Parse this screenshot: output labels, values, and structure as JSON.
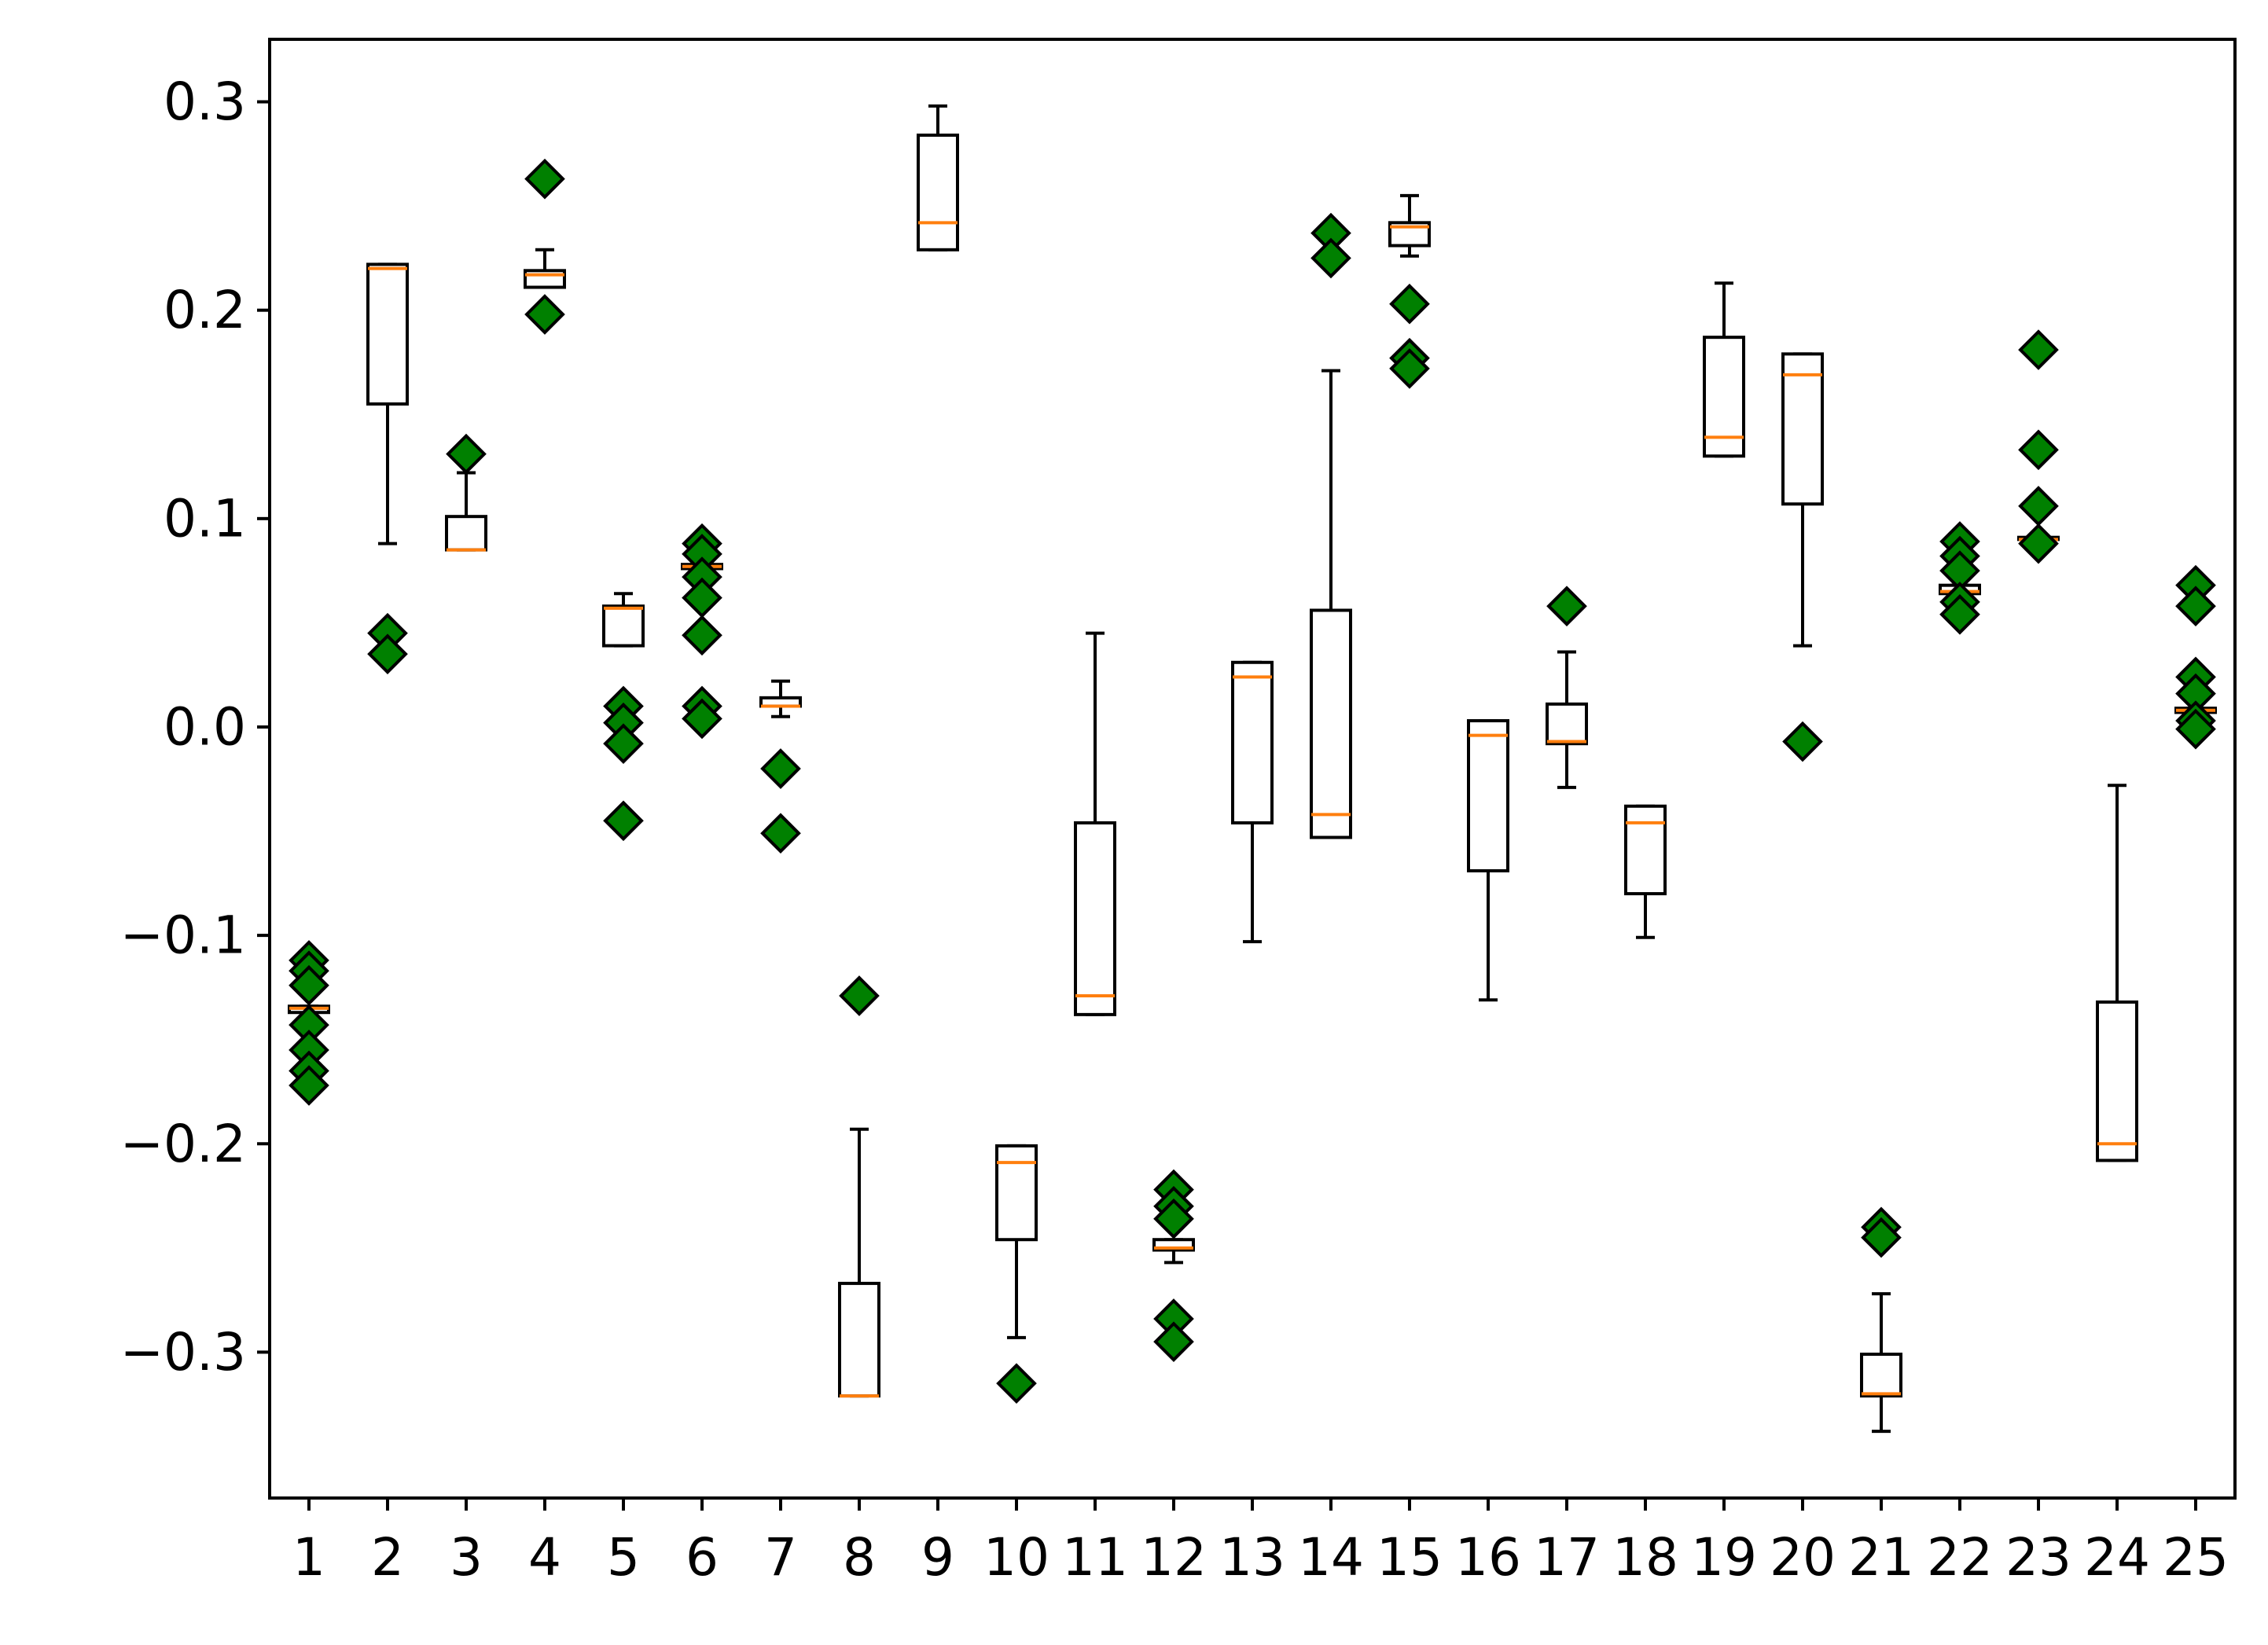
{
  "chart_data": {
    "type": "box",
    "title": "",
    "xlabel": "",
    "ylabel": "",
    "categories": [
      "1",
      "2",
      "3",
      "4",
      "5",
      "6",
      "7",
      "8",
      "9",
      "10",
      "11",
      "12",
      "13",
      "14",
      "15",
      "16",
      "17",
      "18",
      "19",
      "20",
      "21",
      "22",
      "23",
      "24",
      "25"
    ],
    "ylim": [
      -0.37,
      0.33
    ],
    "yticks": [
      -0.3,
      -0.2,
      -0.1,
      0.0,
      0.1,
      0.2,
      0.3
    ],
    "ytick_labels": [
      "−0.3",
      "−0.2",
      "−0.1",
      "0.0",
      "0.1",
      "0.2",
      "0.3"
    ],
    "grid": false,
    "colors": {
      "box": "#000000",
      "median": "#ff7f0e",
      "flier": "#008000",
      "flier_edge": "#000000"
    },
    "boxes": [
      {
        "q1": -0.137,
        "median": -0.135,
        "q3": -0.134,
        "whislo": -0.137,
        "whishi": -0.134,
        "fliers": [
          -0.112,
          -0.117,
          -0.124,
          -0.143,
          -0.155,
          -0.165,
          -0.172
        ]
      },
      {
        "q1": 0.155,
        "median": 0.22,
        "q3": 0.222,
        "whislo": 0.088,
        "whishi": 0.222,
        "fliers": [
          0.045,
          0.035
        ]
      },
      {
        "q1": 0.085,
        "median": 0.085,
        "q3": 0.101,
        "whislo": 0.085,
        "whishi": 0.122,
        "fliers": [
          0.131
        ]
      },
      {
        "q1": 0.211,
        "median": 0.217,
        "q3": 0.219,
        "whislo": 0.211,
        "whishi": 0.229,
        "fliers": [
          0.263,
          0.198
        ]
      },
      {
        "q1": 0.039,
        "median": 0.057,
        "q3": 0.058,
        "whislo": 0.039,
        "whishi": 0.064,
        "fliers": [
          0.01,
          0.002,
          -0.008,
          -0.045
        ]
      },
      {
        "q1": 0.076,
        "median": 0.077,
        "q3": 0.078,
        "whislo": 0.076,
        "whishi": 0.078,
        "fliers": [
          0.088,
          0.083,
          0.072,
          0.062,
          0.044,
          0.01,
          0.004
        ]
      },
      {
        "q1": 0.01,
        "median": 0.01,
        "q3": 0.014,
        "whislo": 0.005,
        "whishi": 0.022,
        "fliers": [
          -0.02,
          -0.051
        ]
      },
      {
        "q1": -0.321,
        "median": -0.321,
        "q3": -0.267,
        "whislo": -0.321,
        "whishi": -0.193,
        "fliers": [
          -0.129
        ]
      },
      {
        "q1": 0.229,
        "median": 0.242,
        "q3": 0.284,
        "whislo": 0.229,
        "whishi": 0.298,
        "fliers": []
      },
      {
        "q1": -0.246,
        "median": -0.209,
        "q3": -0.201,
        "whislo": -0.293,
        "whishi": -0.201,
        "fliers": [
          -0.315
        ]
      },
      {
        "q1": -0.138,
        "median": -0.129,
        "q3": -0.046,
        "whislo": -0.138,
        "whishi": 0.045,
        "fliers": []
      },
      {
        "q1": -0.251,
        "median": -0.25,
        "q3": -0.246,
        "whislo": -0.257,
        "whishi": -0.246,
        "fliers": [
          -0.222,
          -0.23,
          -0.236,
          -0.284,
          -0.295
        ]
      },
      {
        "q1": -0.046,
        "median": 0.024,
        "q3": 0.031,
        "whislo": -0.103,
        "whishi": 0.031,
        "fliers": []
      },
      {
        "q1": -0.053,
        "median": -0.042,
        "q3": 0.056,
        "whislo": -0.053,
        "whishi": 0.171,
        "fliers": [
          0.237,
          0.225
        ]
      },
      {
        "q1": 0.231,
        "median": 0.24,
        "q3": 0.242,
        "whislo": 0.226,
        "whishi": 0.255,
        "fliers": [
          0.203,
          0.177,
          0.172
        ]
      },
      {
        "q1": -0.069,
        "median": -0.004,
        "q3": 0.003,
        "whislo": -0.131,
        "whishi": 0.003,
        "fliers": []
      },
      {
        "q1": -0.008,
        "median": -0.007,
        "q3": 0.011,
        "whislo": -0.029,
        "whishi": 0.036,
        "fliers": [
          0.058
        ]
      },
      {
        "q1": -0.08,
        "median": -0.046,
        "q3": -0.038,
        "whislo": -0.101,
        "whishi": -0.038,
        "fliers": []
      },
      {
        "q1": 0.13,
        "median": 0.139,
        "q3": 0.187,
        "whislo": 0.13,
        "whishi": 0.213,
        "fliers": []
      },
      {
        "q1": 0.107,
        "median": 0.169,
        "q3": 0.179,
        "whislo": 0.039,
        "whishi": 0.179,
        "fliers": [
          -0.007
        ]
      },
      {
        "q1": -0.321,
        "median": -0.32,
        "q3": -0.301,
        "whislo": -0.338,
        "whishi": -0.272,
        "fliers": [
          -0.24,
          -0.245
        ]
      },
      {
        "q1": 0.064,
        "median": 0.065,
        "q3": 0.068,
        "whislo": 0.064,
        "whishi": 0.068,
        "fliers": [
          0.089,
          0.082,
          0.075,
          0.06,
          0.054
        ]
      },
      {
        "q1": 0.09,
        "median": 0.09,
        "q3": 0.091,
        "whislo": 0.09,
        "whishi": 0.091,
        "fliers": [
          0.181,
          0.133,
          0.106,
          0.088
        ]
      },
      {
        "q1": -0.208,
        "median": -0.2,
        "q3": -0.132,
        "whislo": -0.208,
        "whishi": -0.028,
        "fliers": []
      },
      {
        "q1": 0.007,
        "median": 0.008,
        "q3": 0.009,
        "whislo": 0.007,
        "whishi": 0.009,
        "fliers": [
          0.068,
          0.058,
          0.024,
          0.016,
          0.003,
          -0.001
        ]
      }
    ]
  }
}
